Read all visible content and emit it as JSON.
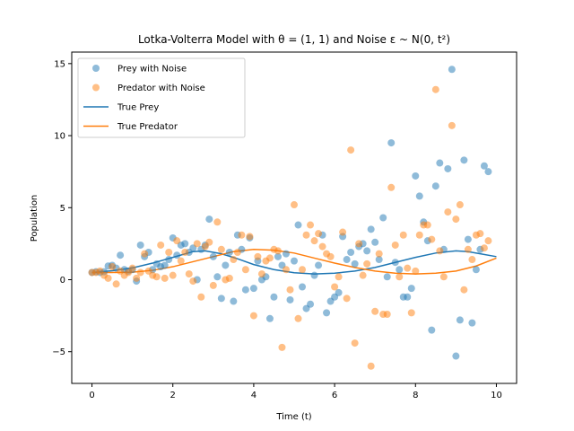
{
  "chart_data": {
    "type": "scatter",
    "title": "Lotka-Volterra Model with θ = (1, 1) and Noise ε ~ N(0, t²)",
    "xlabel": "Time (t)",
    "ylabel": "Population",
    "xlim": [
      -0.5,
      10.5
    ],
    "ylim": [
      -7.2,
      15.8
    ],
    "xticks": [
      0,
      2,
      4,
      6,
      8,
      10
    ],
    "yticks": [
      -5,
      0,
      5,
      10,
      15
    ],
    "grid": false,
    "legend_position": "upper-left",
    "colors": {
      "prey": "#1f77b4",
      "predator": "#ff7f0e"
    },
    "series": [
      {
        "name": "Prey with Noise",
        "kind": "scatter",
        "color": "#1f77b4",
        "points": [
          [
            0.0,
            0.5
          ],
          [
            0.1,
            0.55
          ],
          [
            0.2,
            0.5
          ],
          [
            0.3,
            0.55
          ],
          [
            0.4,
            0.95
          ],
          [
            0.5,
            1.0
          ],
          [
            0.6,
            0.8
          ],
          [
            0.7,
            1.7
          ],
          [
            0.8,
            0.7
          ],
          [
            0.9,
            0.6
          ],
          [
            1.0,
            0.7
          ],
          [
            1.1,
            -0.1
          ],
          [
            1.2,
            2.4
          ],
          [
            1.3,
            1.6
          ],
          [
            1.4,
            1.9
          ],
          [
            1.5,
            0.7
          ],
          [
            1.6,
            1.1
          ],
          [
            1.7,
            0.9
          ],
          [
            1.8,
            1.0
          ],
          [
            1.9,
            1.4
          ],
          [
            2.0,
            2.9
          ],
          [
            2.1,
            1.7
          ],
          [
            2.2,
            2.4
          ],
          [
            2.3,
            2.5
          ],
          [
            2.4,
            1.9
          ],
          [
            2.5,
            2.2
          ],
          [
            2.6,
            0.0
          ],
          [
            2.7,
            2.1
          ],
          [
            2.8,
            2.4
          ],
          [
            2.9,
            4.2
          ],
          [
            3.0,
            1.6
          ],
          [
            3.1,
            0.2
          ],
          [
            3.2,
            -1.3
          ],
          [
            3.3,
            1.0
          ],
          [
            3.4,
            1.9
          ],
          [
            3.5,
            -1.5
          ],
          [
            3.6,
            3.1
          ],
          [
            3.7,
            2.1
          ],
          [
            3.8,
            -0.7
          ],
          [
            3.9,
            2.9
          ],
          [
            4.0,
            -0.6
          ],
          [
            4.1,
            1.3
          ],
          [
            4.2,
            0.0
          ],
          [
            4.3,
            0.2
          ],
          [
            4.4,
            -2.7
          ],
          [
            4.5,
            -1.2
          ],
          [
            4.6,
            1.6
          ],
          [
            4.7,
            1.0
          ],
          [
            4.8,
            1.8
          ],
          [
            4.9,
            -1.4
          ],
          [
            5.0,
            1.3
          ],
          [
            5.1,
            3.8
          ],
          [
            5.2,
            -0.5
          ],
          [
            5.3,
            -2.0
          ],
          [
            5.4,
            -1.7
          ],
          [
            5.5,
            0.3
          ],
          [
            5.6,
            1.0
          ],
          [
            5.7,
            3.1
          ],
          [
            5.8,
            -2.3
          ],
          [
            5.9,
            -1.5
          ],
          [
            6.0,
            -1.2
          ],
          [
            6.1,
            -0.9
          ],
          [
            6.2,
            3.0
          ],
          [
            6.3,
            1.4
          ],
          [
            6.4,
            1.9
          ],
          [
            6.5,
            1.1
          ],
          [
            6.6,
            2.3
          ],
          [
            6.7,
            2.5
          ],
          [
            6.8,
            2.0
          ],
          [
            6.9,
            3.5
          ],
          [
            7.0,
            2.6
          ],
          [
            7.1,
            1.4
          ],
          [
            7.2,
            4.3
          ],
          [
            7.3,
            0.2
          ],
          [
            7.4,
            9.5
          ],
          [
            7.5,
            1.2
          ],
          [
            7.6,
            0.7
          ],
          [
            7.7,
            -1.2
          ],
          [
            7.8,
            -1.2
          ],
          [
            7.9,
            -0.6
          ],
          [
            8.0,
            7.2
          ],
          [
            8.1,
            5.8
          ],
          [
            8.2,
            4.0
          ],
          [
            8.3,
            2.7
          ],
          [
            8.4,
            -3.5
          ],
          [
            8.5,
            6.5
          ],
          [
            8.6,
            8.1
          ],
          [
            8.7,
            2.1
          ],
          [
            8.8,
            7.7
          ],
          [
            8.9,
            14.6
          ],
          [
            9.0,
            -5.3
          ],
          [
            9.1,
            -2.8
          ],
          [
            9.2,
            8.3
          ],
          [
            9.3,
            2.8
          ],
          [
            9.4,
            -3.0
          ],
          [
            9.5,
            0.7
          ],
          [
            9.6,
            2.1
          ],
          [
            9.7,
            7.9
          ],
          [
            9.8,
            7.5
          ]
        ]
      },
      {
        "name": "Predator with Noise",
        "kind": "scatter",
        "color": "#ff7f0e",
        "points": [
          [
            0.0,
            0.5
          ],
          [
            0.1,
            0.5
          ],
          [
            0.2,
            0.6
          ],
          [
            0.3,
            0.3
          ],
          [
            0.4,
            0.1
          ],
          [
            0.5,
            0.9
          ],
          [
            0.6,
            -0.3
          ],
          [
            0.7,
            0.6
          ],
          [
            0.8,
            0.3
          ],
          [
            0.9,
            0.5
          ],
          [
            1.0,
            0.8
          ],
          [
            1.1,
            0.1
          ],
          [
            1.2,
            0.5
          ],
          [
            1.3,
            1.8
          ],
          [
            1.4,
            0.6
          ],
          [
            1.5,
            0.3
          ],
          [
            1.6,
            0.2
          ],
          [
            1.7,
            2.4
          ],
          [
            1.8,
            0.1
          ],
          [
            1.9,
            1.9
          ],
          [
            2.0,
            0.3
          ],
          [
            2.1,
            2.7
          ],
          [
            2.2,
            1.3
          ],
          [
            2.3,
            1.9
          ],
          [
            2.4,
            0.4
          ],
          [
            2.5,
            -0.1
          ],
          [
            2.6,
            2.5
          ],
          [
            2.7,
            -1.2
          ],
          [
            2.8,
            2.3
          ],
          [
            2.9,
            2.6
          ],
          [
            3.0,
            -0.4
          ],
          [
            3.1,
            4.0
          ],
          [
            3.2,
            2.1
          ],
          [
            3.3,
            0.0
          ],
          [
            3.4,
            0.1
          ],
          [
            3.5,
            1.4
          ],
          [
            3.6,
            1.9
          ],
          [
            3.7,
            3.1
          ],
          [
            3.8,
            0.7
          ],
          [
            3.9,
            3.0
          ],
          [
            4.0,
            -2.5
          ],
          [
            4.1,
            1.6
          ],
          [
            4.2,
            0.4
          ],
          [
            4.3,
            1.3
          ],
          [
            4.4,
            1.5
          ],
          [
            4.5,
            2.1
          ],
          [
            4.6,
            2.0
          ],
          [
            4.7,
            -4.7
          ],
          [
            4.8,
            0.7
          ],
          [
            4.9,
            -0.7
          ],
          [
            5.0,
            5.2
          ],
          [
            5.1,
            -2.7
          ],
          [
            5.2,
            0.7
          ],
          [
            5.3,
            3.1
          ],
          [
            5.4,
            3.8
          ],
          [
            5.5,
            2.7
          ],
          [
            5.6,
            3.2
          ],
          [
            5.7,
            2.3
          ],
          [
            5.8,
            1.8
          ],
          [
            5.9,
            1.6
          ],
          [
            6.0,
            -0.5
          ],
          [
            6.1,
            0.2
          ],
          [
            6.2,
            3.3
          ],
          [
            6.3,
            -1.3
          ],
          [
            6.4,
            9.0
          ],
          [
            6.5,
            -4.4
          ],
          [
            6.6,
            2.5
          ],
          [
            6.7,
            0.3
          ],
          [
            6.8,
            1.1
          ],
          [
            6.9,
            -6.0
          ],
          [
            7.0,
            -2.2
          ],
          [
            7.1,
            1.8
          ],
          [
            7.2,
            -2.4
          ],
          [
            7.3,
            -2.4
          ],
          [
            7.4,
            6.4
          ],
          [
            7.5,
            2.4
          ],
          [
            7.6,
            0.2
          ],
          [
            7.7,
            3.1
          ],
          [
            7.8,
            0.8
          ],
          [
            7.9,
            -2.3
          ],
          [
            8.0,
            0.6
          ],
          [
            8.1,
            3.1
          ],
          [
            8.2,
            3.8
          ],
          [
            8.3,
            3.8
          ],
          [
            8.4,
            2.8
          ],
          [
            8.5,
            13.2
          ],
          [
            8.6,
            2.0
          ],
          [
            8.7,
            0.2
          ],
          [
            8.8,
            4.7
          ],
          [
            8.9,
            10.7
          ],
          [
            9.0,
            4.2
          ],
          [
            9.1,
            5.2
          ],
          [
            9.2,
            -0.7
          ],
          [
            9.3,
            2.1
          ],
          [
            9.4,
            1.4
          ],
          [
            9.5,
            3.1
          ],
          [
            9.6,
            3.2
          ],
          [
            9.7,
            2.2
          ],
          [
            9.8,
            2.7
          ]
        ]
      },
      {
        "name": "True Prey",
        "kind": "line",
        "color": "#1f77b4",
        "points": [
          [
            0.0,
            0.5
          ],
          [
            0.5,
            0.62
          ],
          [
            1.0,
            0.82
          ],
          [
            1.5,
            1.15
          ],
          [
            2.0,
            1.55
          ],
          [
            2.5,
            1.95
          ],
          [
            2.8,
            2.0
          ],
          [
            3.2,
            1.8
          ],
          [
            3.6,
            1.45
          ],
          [
            4.0,
            1.05
          ],
          [
            4.5,
            0.7
          ],
          [
            5.0,
            0.48
          ],
          [
            5.5,
            0.4
          ],
          [
            6.0,
            0.45
          ],
          [
            6.5,
            0.6
          ],
          [
            7.0,
            0.85
          ],
          [
            7.5,
            1.2
          ],
          [
            8.0,
            1.55
          ],
          [
            8.5,
            1.85
          ],
          [
            9.0,
            2.0
          ],
          [
            9.3,
            1.95
          ],
          [
            9.6,
            1.8
          ],
          [
            10.0,
            1.6
          ]
        ]
      },
      {
        "name": "True Predator",
        "kind": "line",
        "color": "#ff7f0e",
        "points": [
          [
            0.0,
            0.5
          ],
          [
            0.5,
            0.5
          ],
          [
            1.0,
            0.52
          ],
          [
            1.5,
            0.65
          ],
          [
            2.0,
            0.9
          ],
          [
            2.5,
            1.25
          ],
          [
            3.0,
            1.6
          ],
          [
            3.5,
            1.95
          ],
          [
            4.0,
            2.1
          ],
          [
            4.5,
            2.05
          ],
          [
            5.0,
            1.85
          ],
          [
            5.5,
            1.5
          ],
          [
            6.0,
            1.15
          ],
          [
            6.5,
            0.85
          ],
          [
            7.0,
            0.6
          ],
          [
            7.5,
            0.45
          ],
          [
            8.0,
            0.4
          ],
          [
            8.5,
            0.45
          ],
          [
            9.0,
            0.6
          ],
          [
            9.5,
            0.95
          ],
          [
            10.0,
            1.5
          ]
        ]
      }
    ]
  }
}
